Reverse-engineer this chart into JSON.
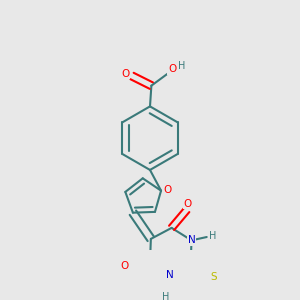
{
  "background_color": "#e8e8e8",
  "bond_color": "#3a7a7a",
  "bond_width": 1.5,
  "atom_colors": {
    "O": "#ff0000",
    "N": "#0000cc",
    "S": "#bbbb00",
    "C": "#3a7a7a",
    "H": "#3a7a7a"
  },
  "figsize": [
    3.0,
    3.0
  ],
  "dpi": 100
}
